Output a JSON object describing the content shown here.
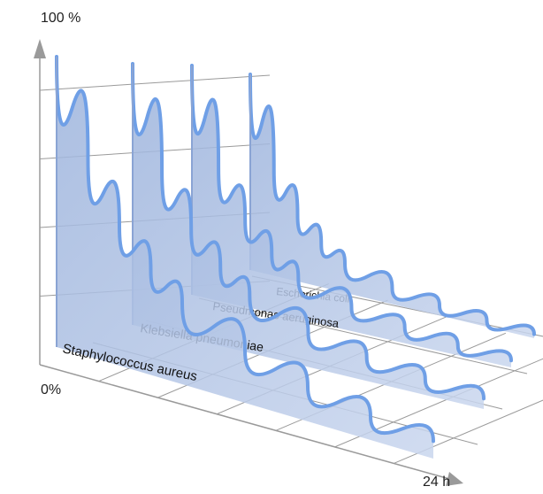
{
  "chart_data": {
    "type": "area",
    "title": "",
    "ylabel": "100 %",
    "ylabel_bottom": "0%",
    "xlabel": "24 h",
    "ylim": [
      0,
      100
    ],
    "xlim": [
      0,
      24
    ],
    "series": [
      {
        "name": "Staphylococcus aureus",
        "x": [
          0,
          2,
          4,
          6,
          8,
          12,
          16,
          20,
          24
        ],
        "values": [
          100,
          68,
          48,
          36,
          28,
          18,
          12,
          8,
          6
        ]
      },
      {
        "name": "Klebsiella pneumoniae",
        "x": [
          0,
          2,
          4,
          6,
          8,
          12,
          16,
          20,
          24
        ],
        "values": [
          100,
          62,
          42,
          30,
          22,
          13,
          9,
          6,
          4
        ]
      },
      {
        "name": "Pseudmonas aeruginosa",
        "x": [
          0,
          2,
          4,
          6,
          8,
          12,
          16,
          20,
          24
        ],
        "values": [
          100,
          58,
          38,
          26,
          18,
          10,
          7,
          4,
          3
        ]
      },
      {
        "name": "Escherichia coli",
        "x": [
          0,
          2,
          4,
          6,
          8,
          12,
          16,
          20,
          24
        ],
        "values": [
          100,
          54,
          34,
          22,
          15,
          8,
          5,
          3,
          2
        ]
      }
    ],
    "colors": {
      "fill": "#aabfe0",
      "edge": "#6f9fe6",
      "axis": "#9a9a9a",
      "grid": "#9a9a9a"
    },
    "grid": true
  }
}
